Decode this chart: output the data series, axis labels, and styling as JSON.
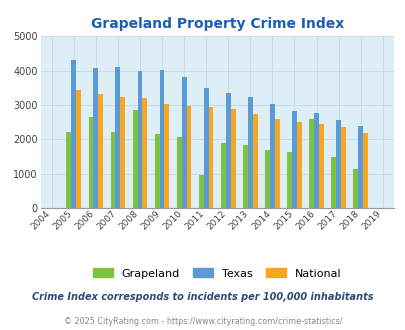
{
  "title": "Grapeland Property Crime Index",
  "years": [
    2004,
    2005,
    2006,
    2007,
    2008,
    2009,
    2010,
    2011,
    2012,
    2013,
    2014,
    2015,
    2016,
    2017,
    2018,
    2019
  ],
  "grapeland": [
    null,
    2220,
    2650,
    2220,
    2840,
    2140,
    2060,
    960,
    1900,
    1840,
    1700,
    1630,
    2590,
    1470,
    1120,
    null
  ],
  "texas": [
    null,
    4300,
    4070,
    4100,
    3990,
    4020,
    3800,
    3480,
    3360,
    3240,
    3040,
    2830,
    2760,
    2570,
    2380,
    null
  ],
  "national": [
    null,
    3430,
    3330,
    3230,
    3200,
    3020,
    2960,
    2930,
    2880,
    2730,
    2580,
    2490,
    2450,
    2360,
    2190,
    null
  ],
  "bar_colors": {
    "grapeland": "#7fc241",
    "texas": "#5b9bd5",
    "national": "#f5a623"
  },
  "ylim": [
    0,
    5000
  ],
  "yticks": [
    0,
    1000,
    2000,
    3000,
    4000,
    5000
  ],
  "bg_color": "#ddeef6",
  "subtitle": "Crime Index corresponds to incidents per 100,000 inhabitants",
  "footer": "© 2025 CityRating.com - https://www.cityrating.com/crime-statistics/",
  "title_color": "#1a5fb4",
  "subtitle_color": "#2e4a7a",
  "footer_color": "#888888",
  "grid_color": "#c8dde8"
}
